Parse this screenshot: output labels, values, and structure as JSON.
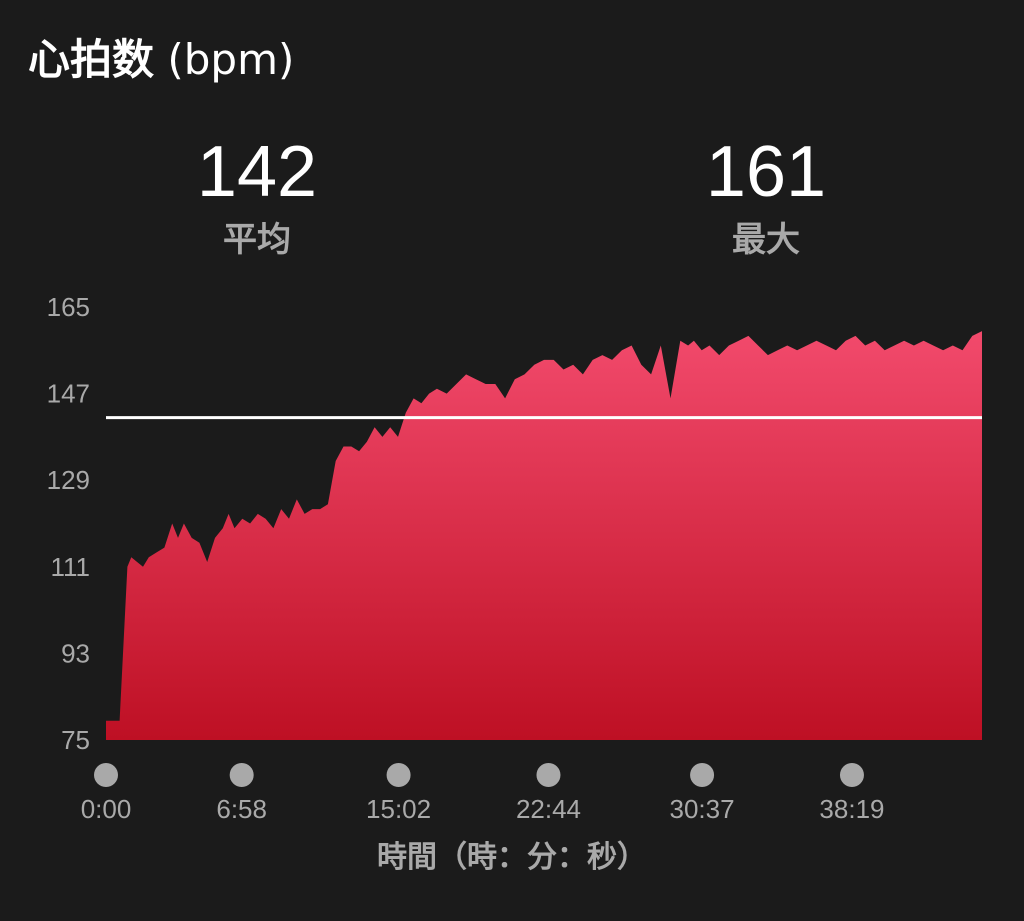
{
  "header": {
    "title": "心拍数",
    "unit": "(bpm)"
  },
  "stats": [
    {
      "value": "142",
      "label": "平均"
    },
    {
      "value": "161",
      "label": "最大"
    }
  ],
  "colors": {
    "background": "#1b1b1b",
    "area_top": "#f24a6c",
    "area_bottom": "#be1024",
    "average_line": "#ffffff",
    "axis_text": "#a9a9a9",
    "marker": "#a9a9a9"
  },
  "chart_data": {
    "type": "area",
    "ylim": [
      75,
      165
    ],
    "yticks": [
      "165",
      "147",
      "129",
      "111",
      "93",
      "75"
    ],
    "xlim": [
      0,
      45
    ],
    "xticks": [
      {
        "label": "0:00",
        "x": 0
      },
      {
        "label": "6:58",
        "x": 6.97
      },
      {
        "label": "15:02",
        "x": 15.03
      },
      {
        "label": "22:44",
        "x": 22.73
      },
      {
        "label": "30:37",
        "x": 30.62
      },
      {
        "label": "38:19",
        "x": 38.32
      }
    ],
    "xlabel": "時間（時：分：秒）",
    "ylabel": "",
    "average": 142,
    "series": [
      {
        "x": [
          0,
          0.7,
          1.1,
          1.3,
          1.6,
          1.9,
          2.2,
          2.6,
          3.0,
          3.4,
          3.7,
          4.0,
          4.4,
          4.8,
          5.2,
          5.6,
          6.0,
          6.3,
          6.6,
          7.0,
          7.4,
          7.8,
          8.2,
          8.6,
          9.0,
          9.4,
          9.8,
          10.2,
          10.6,
          11.0,
          11.4,
          11.8,
          12.2,
          12.6,
          13.0,
          13.4,
          13.8,
          14.2,
          14.6,
          15.0,
          15.4,
          15.8,
          16.2,
          16.6,
          17.0,
          17.5,
          18.0,
          18.5,
          19.0,
          19.5,
          20.0,
          20.5,
          21.0,
          21.5,
          22.0,
          22.5,
          23.0,
          23.5,
          24.0,
          24.5,
          25.0,
          25.5,
          26.0,
          26.5,
          27.0,
          27.5,
          28.0,
          28.5,
          29.0,
          29.5,
          29.9,
          30.2,
          30.6,
          31.0,
          31.5,
          32.0,
          32.5,
          33.0,
          33.5,
          34.0,
          34.5,
          35.0,
          35.5,
          36.0,
          36.5,
          37.0,
          37.5,
          38.0,
          38.5,
          39.0,
          39.5,
          40.0,
          40.5,
          41.0,
          41.5,
          42.0,
          42.5,
          43.0,
          43.5,
          44.0,
          44.5,
          45.0
        ],
        "y": [
          79,
          79,
          111,
          113,
          112,
          111,
          113,
          114,
          115,
          120,
          117,
          120,
          117,
          116,
          112,
          117,
          119,
          122,
          119,
          121,
          120,
          122,
          121,
          119,
          123,
          121,
          125,
          122,
          123,
          123,
          124,
          133,
          136,
          136,
          135,
          137,
          140,
          138,
          140,
          138,
          143,
          146,
          145,
          147,
          148,
          147,
          149,
          151,
          150,
          149,
          149,
          146,
          150,
          151,
          153,
          154,
          154,
          152,
          153,
          151,
          154,
          155,
          154,
          156,
          157,
          153,
          151,
          157,
          146,
          158,
          157,
          158,
          156,
          157,
          155,
          157,
          158,
          159,
          157,
          155,
          156,
          157,
          156,
          157,
          158,
          157,
          156,
          158,
          159,
          157,
          158,
          156,
          157,
          158,
          157,
          158,
          157,
          156,
          157,
          156,
          159,
          160
        ]
      }
    ]
  }
}
